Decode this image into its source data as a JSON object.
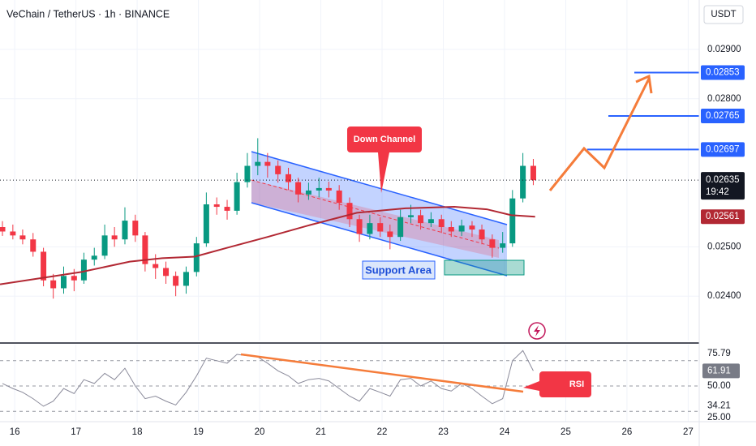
{
  "chart_data": {
    "type": "candlestick",
    "title": "VeChain / TetherUS · 1h · BINANCE",
    "currency": "USDT",
    "x": [
      15.8,
      15.97,
      16.13,
      16.3,
      16.47,
      16.63,
      16.8,
      16.97,
      17.13,
      17.3,
      17.47,
      17.63,
      17.8,
      17.97,
      18.13,
      18.3,
      18.47,
      18.63,
      18.8,
      18.97,
      19.13,
      19.3,
      19.47,
      19.63,
      19.8,
      19.97,
      20.13,
      20.3,
      20.47,
      20.63,
      20.8,
      20.97,
      21.13,
      21.3,
      21.47,
      21.63,
      21.8,
      21.97,
      22.13,
      22.3,
      22.47,
      22.63,
      22.8,
      22.97,
      23.13,
      23.3,
      23.47,
      23.63,
      23.8,
      23.97,
      24.13,
      24.3,
      24.47
    ],
    "open": [
      0.0254,
      0.02531,
      0.02523,
      0.02515,
      0.0249,
      0.02432,
      0.02416,
      0.02441,
      0.02432,
      0.02474,
      0.02482,
      0.02523,
      0.02515,
      0.02553,
      0.02523,
      0.02465,
      0.02457,
      0.02441,
      0.02421,
      0.02449,
      0.02507,
      0.02586,
      0.02581,
      0.02573,
      0.02631,
      0.02664,
      0.02672,
      0.02664,
      0.02647,
      0.02631,
      0.02606,
      0.02614,
      0.02619,
      0.02614,
      0.02589,
      0.02556,
      0.02526,
      0.02548,
      0.02531,
      0.0252,
      0.0256,
      0.02564,
      0.02548,
      0.02556,
      0.0254,
      0.02531,
      0.02543,
      0.02535,
      0.02515,
      0.02498,
      0.02507,
      0.02598,
      0.02664
    ],
    "high": [
      0.02552,
      0.02545,
      0.02535,
      0.02528,
      0.02498,
      0.02445,
      0.0246,
      0.02455,
      0.02488,
      0.02498,
      0.02545,
      0.0254,
      0.0258,
      0.02565,
      0.0253,
      0.02485,
      0.0247,
      0.0245,
      0.0246,
      0.0252,
      0.0261,
      0.026,
      0.02595,
      0.0265,
      0.0269,
      0.0272,
      0.0269,
      0.02675,
      0.0266,
      0.0264,
      0.0263,
      0.0264,
      0.02632,
      0.02625,
      0.026,
      0.02565,
      0.02565,
      0.0256,
      0.02545,
      0.02575,
      0.02585,
      0.02575,
      0.0257,
      0.02565,
      0.02552,
      0.02555,
      0.02552,
      0.02545,
      0.02525,
      0.0253,
      0.02615,
      0.0269,
      0.02678
    ],
    "low": [
      0.02522,
      0.02515,
      0.02505,
      0.0248,
      0.0242,
      0.02395,
      0.02405,
      0.0241,
      0.02425,
      0.02462,
      0.02475,
      0.025,
      0.02505,
      0.0251,
      0.0245,
      0.02435,
      0.02425,
      0.024,
      0.02405,
      0.0244,
      0.025,
      0.02565,
      0.02555,
      0.02565,
      0.0262,
      0.02645,
      0.0264,
      0.0263,
      0.02615,
      0.0259,
      0.02595,
      0.026,
      0.026,
      0.02575,
      0.0254,
      0.0251,
      0.02515,
      0.0252,
      0.02495,
      0.02512,
      0.02548,
      0.02535,
      0.0254,
      0.02528,
      0.0252,
      0.02522,
      0.0252,
      0.02505,
      0.02478,
      0.02488,
      0.025,
      0.0259,
      0.02625
    ],
    "close": [
      0.02531,
      0.02523,
      0.02515,
      0.0249,
      0.02432,
      0.02416,
      0.02441,
      0.02432,
      0.02474,
      0.02482,
      0.02523,
      0.02515,
      0.02553,
      0.02523,
      0.02465,
      0.02457,
      0.02441,
      0.02421,
      0.02449,
      0.02507,
      0.02586,
      0.02581,
      0.02573,
      0.02631,
      0.02664,
      0.02672,
      0.02664,
      0.02647,
      0.02631,
      0.02606,
      0.02614,
      0.02619,
      0.02614,
      0.02589,
      0.02556,
      0.02526,
      0.02548,
      0.02531,
      0.0252,
      0.0256,
      0.02564,
      0.02548,
      0.02556,
      0.0254,
      0.02531,
      0.02543,
      0.02535,
      0.02515,
      0.02498,
      0.02507,
      0.02598,
      0.02664,
      0.02635
    ],
    "up_color": "#089981",
    "down_color": "#f23645",
    "xlim": [
      15.76,
      27.18
    ],
    "xticks": [
      16,
      17,
      18,
      19,
      20,
      21,
      22,
      23,
      24,
      25,
      26,
      27
    ],
    "ylim": [
      0.0231,
      0.03
    ],
    "yticks": [
      {
        "value": 0.029,
        "label": "0.02900"
      },
      {
        "value": 0.028,
        "label": "0.02800"
      },
      {
        "value": 0.025,
        "label": "0.02500"
      },
      {
        "value": 0.024,
        "label": "0.02400"
      }
    ],
    "grid": true,
    "moving_average": {
      "color": "#b22833",
      "x": [
        15.76,
        17.09,
        17.88,
        18.41,
        18.94,
        19.47,
        20.13,
        20.79,
        21.59,
        22.38,
        23.18,
        23.71,
        24.11,
        24.5
      ],
      "values": [
        0.02424,
        0.02449,
        0.0247,
        0.02477,
        0.0248,
        0.02498,
        0.0252,
        0.02543,
        0.02569,
        0.02578,
        0.02581,
        0.02576,
        0.02564,
        0.02561
      ],
      "label": 0.02561
    },
    "price_markers": [
      {
        "value": 0.02853,
        "color": "#2962ff"
      },
      {
        "value": 0.02765,
        "color": "#2962ff"
      },
      {
        "value": 0.02697,
        "color": "#2962ff"
      }
    ],
    "last_price": 0.02635,
    "countdown": "19:42",
    "annotations": [
      "Down Channel",
      "Support Area",
      "RSI"
    ],
    "rsi": {
      "color": "#8a8a9a",
      "values": [
        52,
        48,
        45,
        40,
        34,
        38,
        48,
        44,
        55,
        52,
        60,
        55,
        64,
        50,
        40,
        42,
        38,
        35,
        45,
        58,
        72,
        70,
        68,
        75,
        74,
        73,
        68,
        62,
        58,
        52,
        55,
        56,
        54,
        48,
        42,
        38,
        48,
        45,
        42,
        55,
        56,
        50,
        54,
        48,
        46,
        52,
        48,
        42,
        36,
        40,
        70,
        78,
        62
      ],
      "ylim": [
        21.8,
        82.7
      ],
      "yticks": [
        75.79,
        61.91,
        {
          "value": 50,
          "label": "50.00"
        },
        34.21,
        {
          "value": 25,
          "label": "25.00"
        }
      ],
      "levels": [
        70,
        50,
        30
      ],
      "current": 61.91
    }
  }
}
